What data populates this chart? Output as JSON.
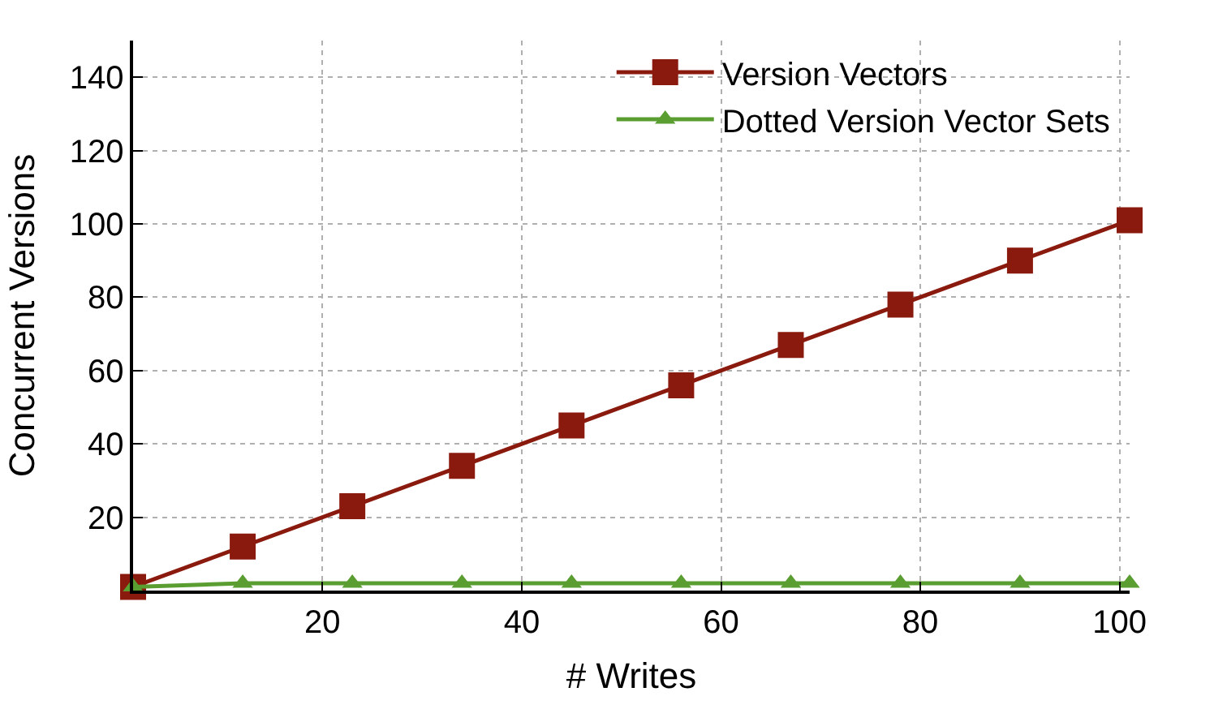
{
  "chart_data": {
    "type": "line",
    "xlabel": "# Writes",
    "ylabel": "Concurrent Versions",
    "x": [
      1,
      12,
      23,
      34,
      45,
      56,
      67,
      78,
      90,
      101
    ],
    "series": [
      {
        "name": "Version Vectors",
        "color": "#8b1a0e",
        "marker": "square",
        "values": [
          1,
          12,
          23,
          34,
          45,
          56,
          67,
          78,
          90,
          101
        ]
      },
      {
        "name": "Dotted Version Vector Sets",
        "color": "#5a9e32",
        "marker": "triangle",
        "values": [
          1,
          2,
          2,
          2,
          2,
          2,
          2,
          2,
          2,
          2
        ]
      }
    ],
    "xlim": [
      1,
      101
    ],
    "xticks": [
      20,
      40,
      60,
      80,
      100
    ],
    "ylim": [
      0,
      150
    ],
    "yticks": [
      20,
      40,
      60,
      80,
      100,
      120,
      140
    ],
    "grid": true,
    "legend": "top right",
    "line_style": "solid"
  }
}
